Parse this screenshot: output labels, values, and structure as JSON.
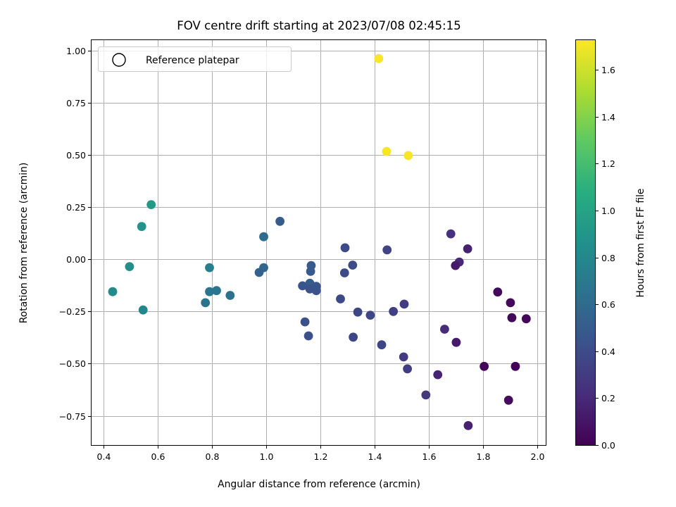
{
  "chart_data": {
    "type": "scatter",
    "title": "FOV centre drift starting at 2023/07/08 02:45:15",
    "xlabel": "Angular distance from reference (arcmin)",
    "ylabel": "Rotation from reference (arcmin)",
    "xlim": [
      0.355,
      2.03
    ],
    "ylim": [
      -0.89,
      1.05
    ],
    "xticks": [
      0.4,
      0.6,
      0.8,
      1.0,
      1.2,
      1.4,
      1.6,
      1.8,
      2.0
    ],
    "xtick_labels": [
      "0.4",
      "0.6",
      "0.8",
      "1.0",
      "1.2",
      "1.4",
      "1.6",
      "1.8",
      "2.0"
    ],
    "yticks": [
      1.0,
      0.75,
      0.5,
      0.25,
      0.0,
      -0.25,
      -0.5,
      -0.75
    ],
    "ytick_labels": [
      "1.00",
      "0.75",
      "0.50",
      "0.25",
      "0.00",
      "−0.25",
      "−0.50",
      "−0.75"
    ],
    "grid": true,
    "legend": {
      "placement": "top-left",
      "entries": [
        "Reference platepar"
      ],
      "marker": "hollow-circle"
    },
    "colorbar": {
      "label": "Hours from first FF file",
      "colormap": "viridis",
      "min": 0.0,
      "max": 1.73,
      "ticks": [
        0.0,
        0.2,
        0.4,
        0.6,
        0.8,
        1.0,
        1.2,
        1.4,
        1.6
      ],
      "tick_labels": [
        "0.0",
        "0.2",
        "0.4",
        "0.6",
        "0.8",
        "1.0",
        "1.2",
        "1.4",
        "1.6"
      ]
    },
    "points": [
      {
        "x": 1.414,
        "y": 0.962,
        "c": 1.72
      },
      {
        "x": 1.443,
        "y": 0.517,
        "c": 1.71
      },
      {
        "x": 1.523,
        "y": 0.497,
        "c": 1.71
      },
      {
        "x": 0.575,
        "y": 0.262,
        "c": 0.93
      },
      {
        "x": 0.54,
        "y": 0.157,
        "c": 0.89
      },
      {
        "x": 0.495,
        "y": -0.035,
        "c": 0.85
      },
      {
        "x": 0.433,
        "y": -0.155,
        "c": 0.82
      },
      {
        "x": 0.545,
        "y": -0.243,
        "c": 0.78
      },
      {
        "x": 0.79,
        "y": -0.04,
        "c": 0.74
      },
      {
        "x": 0.79,
        "y": -0.155,
        "c": 0.68
      },
      {
        "x": 0.816,
        "y": -0.15,
        "c": 0.67
      },
      {
        "x": 0.775,
        "y": -0.208,
        "c": 0.66
      },
      {
        "x": 0.866,
        "y": -0.173,
        "c": 0.64
      },
      {
        "x": 0.99,
        "y": 0.108,
        "c": 0.6
      },
      {
        "x": 0.99,
        "y": -0.04,
        "c": 0.57
      },
      {
        "x": 0.973,
        "y": -0.063,
        "c": 0.55
      },
      {
        "x": 1.05,
        "y": 0.182,
        "c": 0.5
      },
      {
        "x": 1.165,
        "y": -0.03,
        "c": 0.49
      },
      {
        "x": 1.163,
        "y": -0.058,
        "c": 0.48
      },
      {
        "x": 1.16,
        "y": -0.115,
        "c": 0.5
      },
      {
        "x": 1.165,
        "y": -0.125,
        "c": 0.5
      },
      {
        "x": 1.133,
        "y": -0.127,
        "c": 0.45
      },
      {
        "x": 1.184,
        "y": -0.13,
        "c": 0.45
      },
      {
        "x": 1.16,
        "y": -0.142,
        "c": 0.44
      },
      {
        "x": 1.184,
        "y": -0.15,
        "c": 0.44
      },
      {
        "x": 1.142,
        "y": -0.3,
        "c": 0.42
      },
      {
        "x": 1.155,
        "y": -0.367,
        "c": 0.42
      },
      {
        "x": 1.29,
        "y": 0.055,
        "c": 0.4
      },
      {
        "x": 1.288,
        "y": -0.065,
        "c": 0.4
      },
      {
        "x": 1.318,
        "y": -0.028,
        "c": 0.39
      },
      {
        "x": 1.273,
        "y": -0.19,
        "c": 0.38
      },
      {
        "x": 1.337,
        "y": -0.253,
        "c": 0.37
      },
      {
        "x": 1.383,
        "y": -0.268,
        "c": 0.36
      },
      {
        "x": 1.32,
        "y": -0.373,
        "c": 0.37
      },
      {
        "x": 1.425,
        "y": -0.41,
        "c": 0.37
      },
      {
        "x": 1.445,
        "y": 0.045,
        "c": 0.35
      },
      {
        "x": 1.468,
        "y": -0.25,
        "c": 0.32
      },
      {
        "x": 1.508,
        "y": -0.215,
        "c": 0.31
      },
      {
        "x": 1.506,
        "y": -0.468,
        "c": 0.3
      },
      {
        "x": 1.52,
        "y": -0.525,
        "c": 0.31
      },
      {
        "x": 1.588,
        "y": -0.65,
        "c": 0.27
      },
      {
        "x": 1.68,
        "y": 0.122,
        "c": 0.24
      },
      {
        "x": 1.742,
        "y": 0.05,
        "c": 0.16
      },
      {
        "x": 1.711,
        "y": -0.013,
        "c": 0.19
      },
      {
        "x": 1.697,
        "y": -0.03,
        "c": 0.12
      },
      {
        "x": 1.657,
        "y": -0.335,
        "c": 0.21
      },
      {
        "x": 1.632,
        "y": -0.553,
        "c": 0.17
      },
      {
        "x": 1.7,
        "y": -0.398,
        "c": 0.12
      },
      {
        "x": 1.744,
        "y": -0.797,
        "c": 0.16
      },
      {
        "x": 1.853,
        "y": -0.157,
        "c": 0.04
      },
      {
        "x": 1.9,
        "y": -0.208,
        "c": 0.04
      },
      {
        "x": 1.905,
        "y": -0.28,
        "c": 0.03
      },
      {
        "x": 1.958,
        "y": -0.285,
        "c": 0.03
      },
      {
        "x": 1.803,
        "y": -0.513,
        "c": 0.02
      },
      {
        "x": 1.918,
        "y": -0.513,
        "c": 0.02
      },
      {
        "x": 1.893,
        "y": -0.675,
        "c": 0.05
      }
    ]
  }
}
